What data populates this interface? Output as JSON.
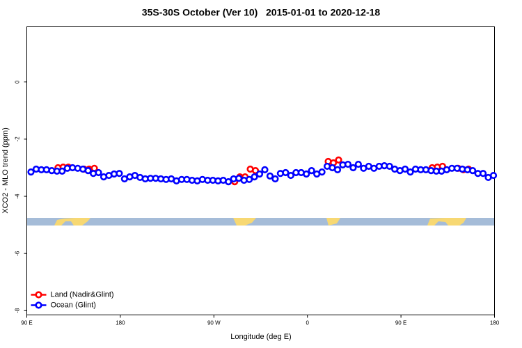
{
  "chart_data": {
    "type": "scatter",
    "title": "35S-30S October (Ver 10)   2015-01-01 to 2020-12-18",
    "x_label": "Longitude (deg E)",
    "y_label": "XCO2 - MLO trend (ppm)",
    "xlim": [
      90,
      540
    ],
    "ylim": [
      -8.15,
      1.93
    ],
    "xticks": [
      {
        "value": 90,
        "label": "90 E"
      },
      180,
      {
        "value": 270,
        "label": "90 W"
      },
      {
        "value": 360,
        "label": "0"
      },
      {
        "value": 450,
        "label": "90 E"
      },
      {
        "value": 540,
        "label": "180"
      }
    ],
    "yticks": [
      0,
      -2,
      -4,
      -6,
      -8
    ],
    "legend": "bottom left",
    "series": [
      {
        "name": "Land (Nadir&Glint)",
        "color": "#ff0000",
        "x": [
          120,
          125,
          130,
          145,
          150,
          155,
          290,
          295,
          300,
          305,
          310,
          380,
          385,
          390,
          480,
          485,
          490,
          505,
          510,
          515
        ],
        "values": [
          -3.0,
          -2.98,
          -2.98,
          -3.05,
          -3.05,
          -3.02,
          -3.49,
          -3.32,
          -3.32,
          -3.05,
          -3.1,
          -2.78,
          -2.83,
          -2.73,
          -3.0,
          -2.98,
          -2.95,
          -3.02,
          -3.07,
          -3.05
        ]
      },
      {
        "name": "Ocean (Glint)",
        "color": "#0000ff",
        "x": [
          94,
          99,
          104,
          109,
          114,
          119,
          124,
          129,
          134,
          139,
          144,
          149,
          154,
          159,
          164,
          169,
          174,
          179,
          184,
          189,
          194,
          199,
          204,
          209,
          214,
          219,
          224,
          229,
          234,
          239,
          244,
          249,
          254,
          259,
          264,
          269,
          274,
          279,
          284,
          289,
          294,
          299,
          304,
          309,
          314,
          319,
          324,
          329,
          334,
          339,
          344,
          349,
          354,
          359,
          364,
          369,
          374,
          379,
          384,
          389,
          394,
          399,
          404,
          409,
          414,
          419,
          424,
          429,
          434,
          439,
          444,
          449,
          454,
          459,
          464,
          469,
          474,
          479,
          484,
          489,
          494,
          499,
          504,
          509,
          514,
          519,
          524,
          529,
          534,
          539
        ],
        "values": [
          -3.15,
          -3.05,
          -3.07,
          -3.07,
          -3.1,
          -3.12,
          -3.12,
          -3.02,
          -3.0,
          -3.02,
          -3.05,
          -3.1,
          -3.2,
          -3.17,
          -3.32,
          -3.27,
          -3.22,
          -3.2,
          -3.39,
          -3.32,
          -3.27,
          -3.34,
          -3.39,
          -3.37,
          -3.37,
          -3.39,
          -3.41,
          -3.39,
          -3.46,
          -3.41,
          -3.41,
          -3.44,
          -3.46,
          -3.41,
          -3.44,
          -3.44,
          -3.46,
          -3.44,
          -3.49,
          -3.39,
          -3.37,
          -3.44,
          -3.41,
          -3.32,
          -3.22,
          -3.07,
          -3.29,
          -3.39,
          -3.2,
          -3.17,
          -3.27,
          -3.17,
          -3.17,
          -3.22,
          -3.1,
          -3.22,
          -3.15,
          -2.95,
          -3.0,
          -3.07,
          -2.9,
          -2.88,
          -3.0,
          -2.88,
          -3.02,
          -2.95,
          -3.02,
          -2.95,
          -2.93,
          -2.95,
          -3.05,
          -3.1,
          -3.05,
          -3.15,
          -3.05,
          -3.07,
          -3.07,
          -3.1,
          -3.12,
          -3.12,
          -3.07,
          -3.02,
          -3.02,
          -3.05,
          -3.07,
          -3.1,
          -3.2,
          -3.2,
          -3.34,
          -3.27
        ]
      }
    ]
  }
}
